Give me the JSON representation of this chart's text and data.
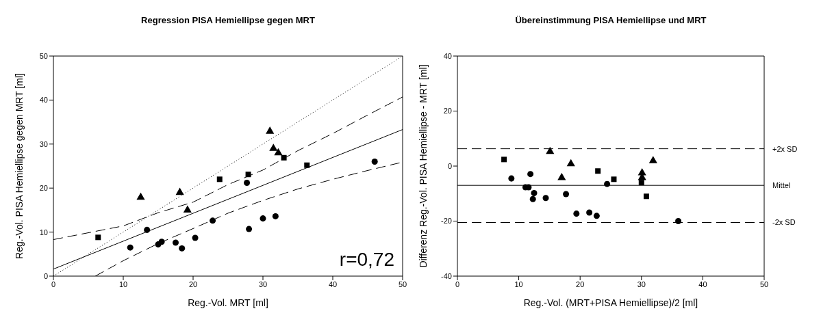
{
  "chart_data": [
    {
      "type": "scatter",
      "title": "Regression PISA Hemiellipse gegen MRT",
      "xlabel": "Reg.-Vol. MRT [ml]",
      "ylabel": "Reg.-Vol. PISA Hemiellipse gegen MRT [ml]",
      "xlim": [
        0,
        50
      ],
      "ylim": [
        0,
        50
      ],
      "xticks": [
        0,
        10,
        20,
        30,
        40,
        50
      ],
      "yticks": [
        0,
        10,
        20,
        30,
        40,
        50
      ],
      "annotations": [
        "r=0,72"
      ],
      "series": [
        {
          "type": "scatter",
          "marker": "circle",
          "color": "#000000",
          "x": [
            11.0,
            13.4,
            15.0,
            15.5,
            17.5,
            18.4,
            20.3,
            22.8,
            27.7,
            28.0,
            30.0,
            31.8,
            46.0
          ],
          "values": [
            6.5,
            10.5,
            7.2,
            7.8,
            7.6,
            6.3,
            8.7,
            12.6,
            21.2,
            10.7,
            13.1,
            13.6,
            26.0
          ]
        },
        {
          "type": "scatter",
          "marker": "square",
          "color": "#000000",
          "x": [
            6.4,
            23.8,
            27.9,
            33.0,
            36.3
          ],
          "values": [
            8.8,
            22.0,
            23.1,
            26.9,
            25.2
          ]
        },
        {
          "type": "scatter",
          "marker": "triangle",
          "color": "#000000",
          "x": [
            12.5,
            18.1,
            19.2,
            31.0,
            31.5,
            32.2
          ],
          "values": [
            17.9,
            19.0,
            15.0,
            32.9,
            29.0,
            28.0
          ]
        },
        {
          "type": "line",
          "line_style": "solid",
          "color": "#000000",
          "x": [
            0,
            50
          ],
          "values": [
            1.6,
            33.3
          ]
        },
        {
          "type": "line",
          "line_style": "dotted",
          "color": "#000000",
          "x": [
            0,
            50
          ],
          "values": [
            0,
            50
          ]
        },
        {
          "type": "line",
          "line_style": "dashed",
          "color": "#000000",
          "x": [
            0,
            10,
            15,
            20,
            25,
            30,
            35,
            40,
            45,
            50
          ],
          "values": [
            8.3,
            11.4,
            14.4,
            16.8,
            20.8,
            24.1,
            28.5,
            32.4,
            36.6,
            40.7
          ]
        },
        {
          "type": "line",
          "line_style": "dashed",
          "color": "#000000",
          "x": [
            6,
            10,
            15,
            20,
            25,
            30,
            35,
            40,
            45,
            50
          ],
          "values": [
            0,
            3.5,
            7.4,
            10.8,
            14.3,
            17.2,
            19.8,
            22.0,
            24.0,
            25.9
          ]
        }
      ]
    },
    {
      "type": "scatter",
      "title": "Übereinstimmung PISA Hemiellipse und MRT",
      "xlabel": "Reg.-Vol. (MRT+PISA Hemiellipse)/2 [ml]",
      "ylabel": "Differenz Reg.-Vol. PISA Hemiellipse - MRT [ml]",
      "xlim": [
        0,
        50
      ],
      "ylim": [
        -40,
        40
      ],
      "xticks": [
        0,
        10,
        20,
        30,
        40,
        50
      ],
      "yticks": [
        -40,
        -20,
        0,
        20,
        40
      ],
      "ref_lines": [
        {
          "axis": "y",
          "value": 6.3,
          "label": "+2x SD",
          "line_style": "dashed"
        },
        {
          "axis": "y",
          "value": -7.0,
          "label": "Mittel",
          "line_style": "solid"
        },
        {
          "axis": "y",
          "value": -20.5,
          "label": "-2x SD",
          "line_style": "dashed"
        }
      ],
      "series": [
        {
          "type": "scatter",
          "marker": "circle",
          "color": "#000000",
          "x": [
            8.8,
            11.9,
            11.1,
            11.6,
            12.5,
            12.3,
            14.4,
            17.7,
            19.4,
            21.5,
            22.7,
            24.4,
            36.0
          ],
          "values": [
            -4.5,
            -2.9,
            -7.7,
            -7.7,
            -9.8,
            -12.0,
            -11.6,
            -10.2,
            -17.3,
            -16.9,
            -18.1,
            -6.5,
            -20.0
          ]
        },
        {
          "type": "scatter",
          "marker": "square",
          "color": "#000000",
          "x": [
            7.6,
            22.9,
            25.5,
            30.0,
            30.8
          ],
          "values": [
            2.4,
            -1.8,
            -4.8,
            -6.0,
            -11.0
          ]
        },
        {
          "type": "scatter",
          "marker": "triangle",
          "color": "#000000",
          "x": [
            15.1,
            18.5,
            17.0,
            30.1,
            30.1,
            31.9
          ],
          "values": [
            5.3,
            0.8,
            -4.2,
            -2.5,
            -4.2,
            1.9
          ]
        }
      ]
    }
  ]
}
